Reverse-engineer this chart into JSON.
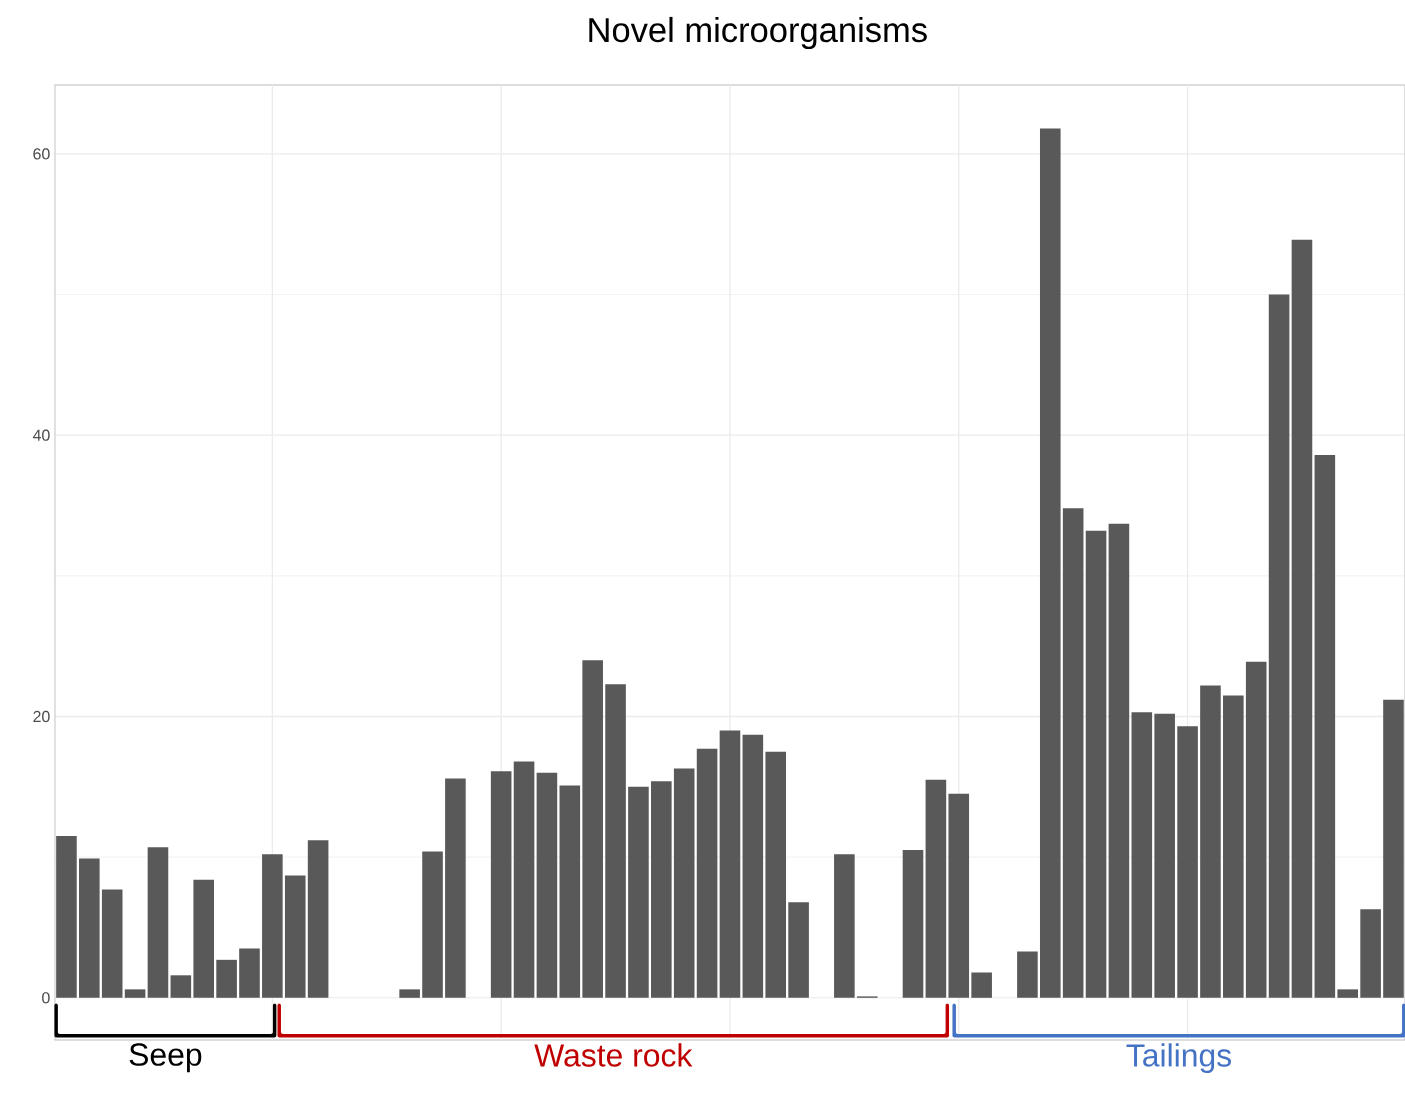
{
  "chart_data": {
    "type": "bar",
    "title": "Novel microorganisms",
    "categories": [
      null,
      null,
      null,
      null,
      null,
      null,
      null,
      null,
      null,
      null,
      null,
      null,
      null,
      null,
      null,
      null,
      null,
      null,
      null,
      null,
      null,
      null,
      null,
      null,
      null,
      null,
      null,
      null,
      null,
      null,
      null,
      null,
      null,
      null,
      null,
      null,
      null,
      null,
      null,
      null,
      null,
      null,
      null,
      null,
      null,
      null,
      null,
      null,
      null,
      null,
      null,
      null,
      null,
      null,
      null,
      null,
      null,
      null,
      null
    ],
    "values": [
      11.5,
      9.9,
      7.7,
      0.6,
      10.7,
      1.6,
      8.4,
      2.7,
      3.5,
      10.2,
      8.7,
      11.2,
      0,
      0,
      0,
      0.6,
      10.4,
      15.6,
      0,
      16.1,
      16.8,
      16.0,
      15.1,
      24.0,
      22.3,
      15.0,
      15.4,
      16.3,
      17.7,
      19.0,
      18.7,
      17.5,
      6.8,
      0,
      10.2,
      0.1,
      0,
      10.5,
      15.5,
      14.5,
      1.8,
      0,
      3.3,
      61.8,
      34.8,
      33.2,
      33.7,
      20.3,
      20.2,
      19.3,
      22.2,
      21.5,
      23.9,
      50.0,
      53.9,
      38.6,
      0.6,
      6.3,
      21.2
    ],
    "color": "#595959",
    "ylim": [
      -3.0,
      64.9
    ],
    "yticks": [
      0,
      20,
      40,
      60
    ],
    "grid": true,
    "annotations": [
      "Seep",
      "Waste rock",
      "Tailings"
    ]
  }
}
